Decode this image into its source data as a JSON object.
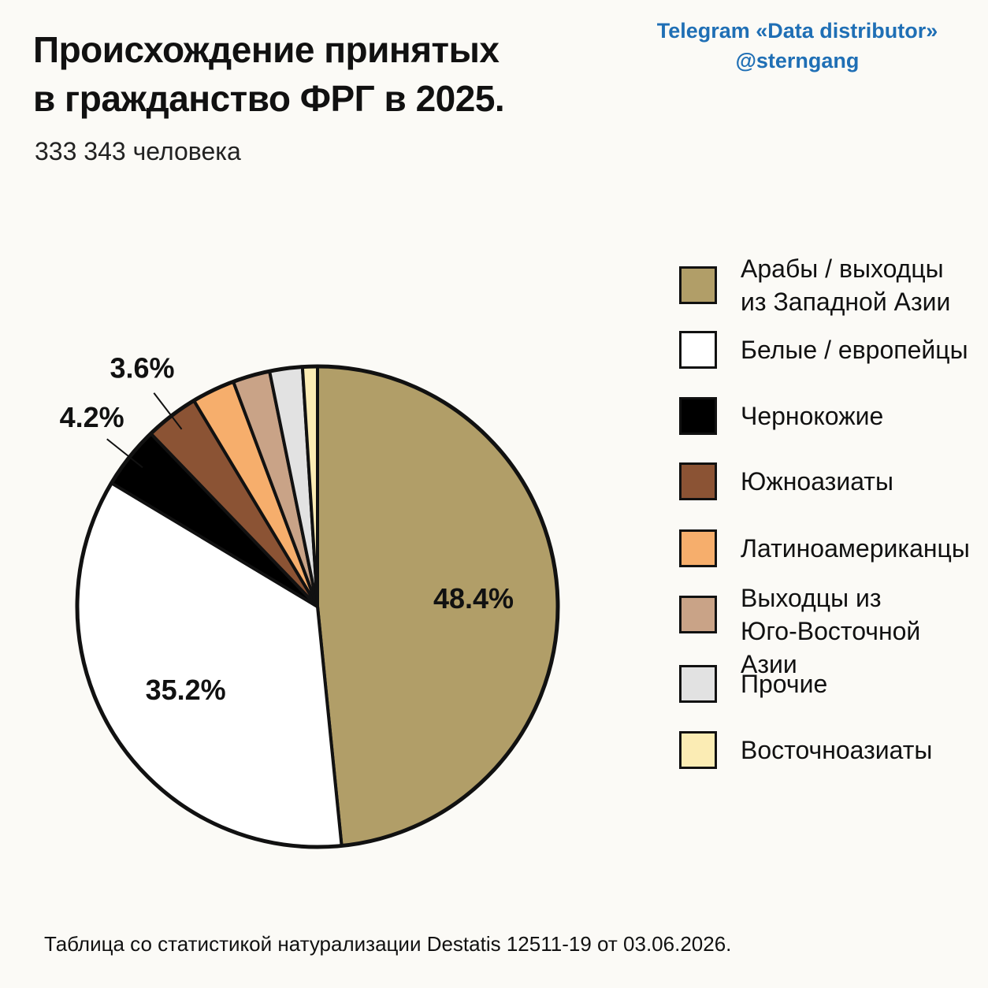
{
  "header": {
    "title_line1": "Происхождение принятых",
    "title_line2": "в гражданство ФРГ в 2025.",
    "subtitle": "333 343 человека"
  },
  "credit": {
    "line1": "Telegram «Data distributor»",
    "line2": "@sterngang"
  },
  "footer": {
    "source": "Таблица со статистикой натурализации Destatis 12511-19 от 03.06.2026."
  },
  "colors": {
    "arab": "#b19e68",
    "white": "#ffffff",
    "black": "#000000",
    "south_asian": "#8b5334",
    "latino": "#f6ae6c",
    "southeast_asian": "#c9a387",
    "other": "#e2e2e2",
    "east_asian": "#fbecb4",
    "outline": "#111111"
  },
  "chart_data": {
    "type": "pie",
    "title": "Происхождение принятых в гражданство ФРГ в 2025.",
    "subtitle": "333 343 человека",
    "legend_position": "right",
    "start": "top, clockwise",
    "slices": [
      {
        "label": "Арабы / выходцы\nиз Западной Азии",
        "value": 48.4,
        "display": "48.4%",
        "color": "#b19e68"
      },
      {
        "label": "Белые / европейцы",
        "value": 35.2,
        "display": "35.2%",
        "color": "#ffffff"
      },
      {
        "label": "Чернокожие",
        "value": 4.2,
        "display": "4.2%",
        "color": "#000000"
      },
      {
        "label": "Южноазиаты",
        "value": 3.6,
        "display": "3.6%",
        "color": "#8b5334"
      },
      {
        "label": "Латиноамериканцы",
        "value": 2.9,
        "display": "",
        "color": "#f6ae6c"
      },
      {
        "label": "Выходцы из\nЮго-Восточной Азии",
        "value": 2.5,
        "display": "",
        "color": "#c9a387"
      },
      {
        "label": "Прочие",
        "value": 2.2,
        "display": "",
        "color": "#e2e2e2"
      },
      {
        "label": "Восточноазиаты",
        "value": 1.0,
        "display": "",
        "color": "#fbecb4"
      }
    ]
  }
}
